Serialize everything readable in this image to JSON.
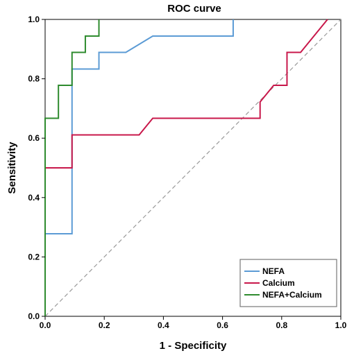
{
  "chart_data": {
    "type": "line",
    "title": "ROC curve",
    "xlabel": "1 - Specificity",
    "ylabel": "Sensitivity",
    "xlim": [
      0,
      1
    ],
    "ylim": [
      0,
      1
    ],
    "x_ticks": [
      "0.0",
      "0.2",
      "0.4",
      "0.6",
      "0.8",
      "1.0"
    ],
    "y_ticks": [
      "0.0",
      "0.2",
      "0.4",
      "0.6",
      "0.8",
      "1.0"
    ],
    "grid": false,
    "legend_position": "bottom-right",
    "reference_line": {
      "color": "#999999",
      "style": "dashed",
      "from": [
        0,
        0
      ],
      "to": [
        1,
        1
      ]
    },
    "series": [
      {
        "name": "NEFA",
        "color": "#5b9bd5",
        "x": [
          0,
          0,
          0.091,
          0.091,
          0.182,
          0.182,
          0.273,
          0.364,
          0.636,
          0.636
        ],
        "y": [
          0,
          0.278,
          0.278,
          0.833,
          0.833,
          0.889,
          0.889,
          0.944,
          0.944,
          1.0
        ]
      },
      {
        "name": "Calcium",
        "color": "#c8174a",
        "x": [
          0,
          0,
          0.091,
          0.091,
          0.318,
          0.364,
          0.727,
          0.727,
          0.773,
          0.818,
          0.818,
          0.864,
          0.955
        ],
        "y": [
          0,
          0.5,
          0.5,
          0.611,
          0.611,
          0.667,
          0.667,
          0.722,
          0.778,
          0.778,
          0.889,
          0.889,
          1.0
        ]
      },
      {
        "name": "NEFA+Calcium",
        "color": "#2e8b2e",
        "x": [
          0,
          0,
          0.045,
          0.045,
          0.091,
          0.091,
          0.136,
          0.136,
          0.182,
          0.182
        ],
        "y": [
          0,
          0.667,
          0.667,
          0.778,
          0.778,
          0.889,
          0.889,
          0.944,
          0.944,
          1.0
        ]
      }
    ]
  }
}
